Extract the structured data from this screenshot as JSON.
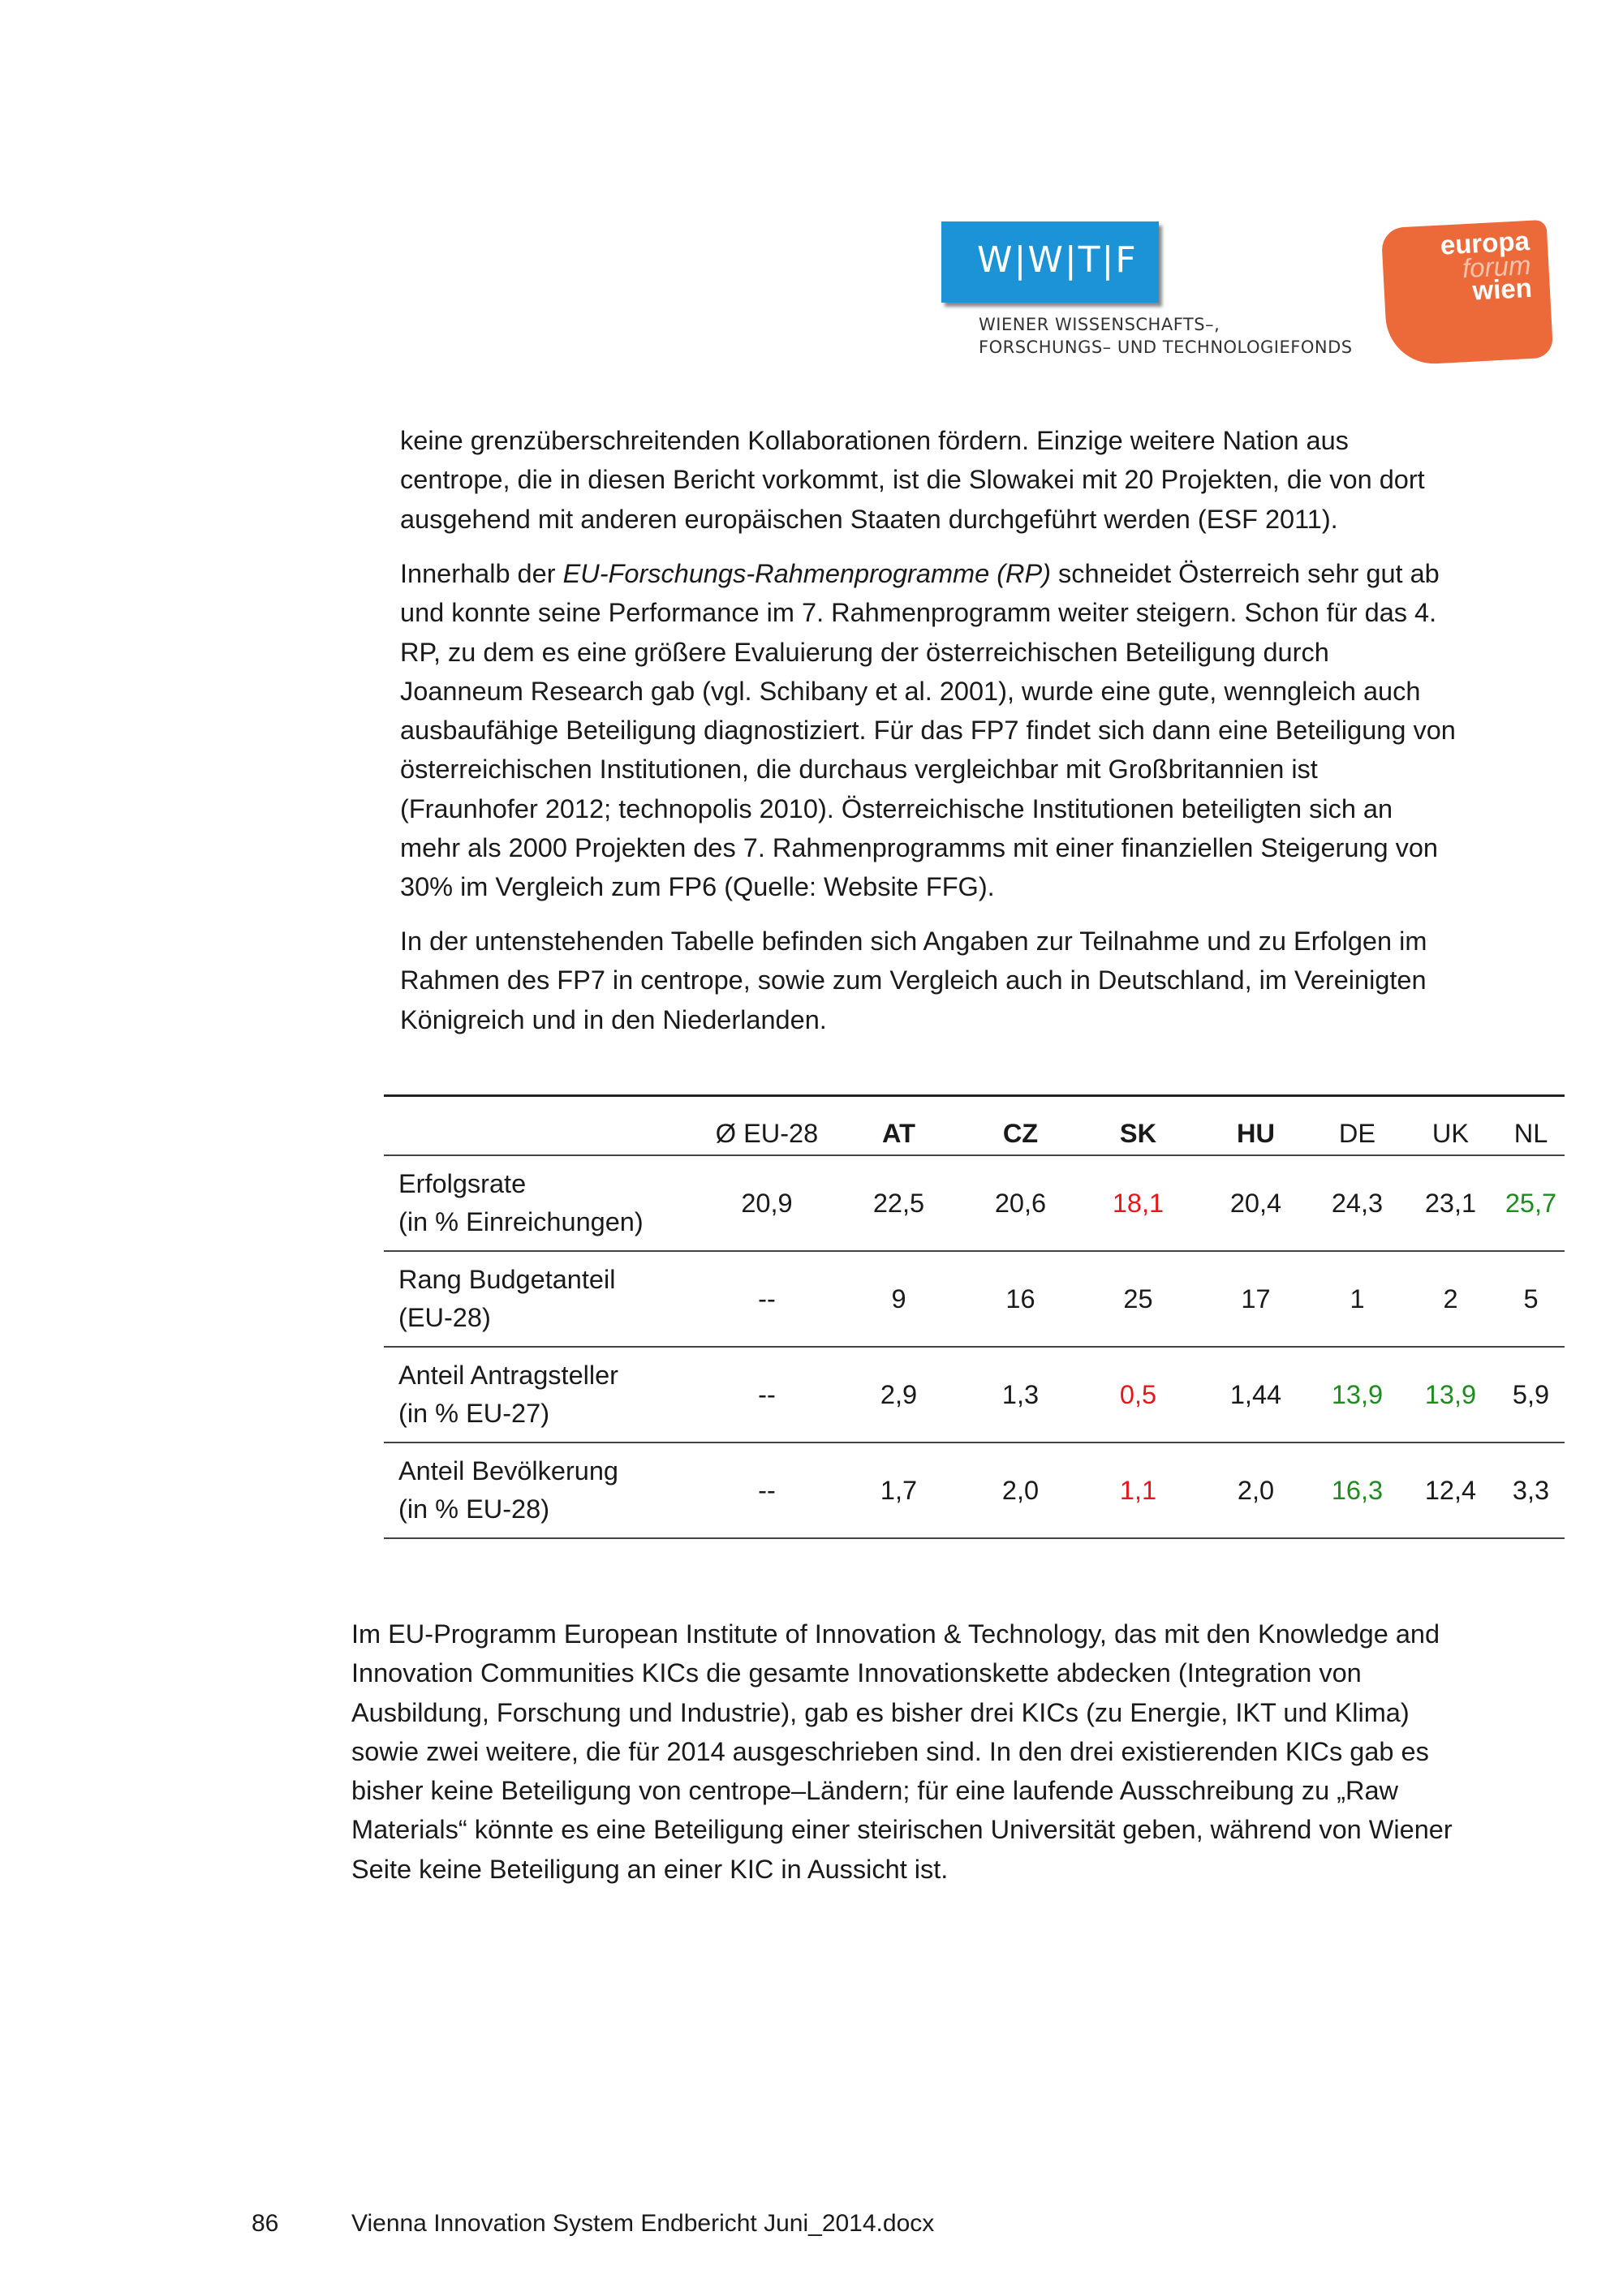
{
  "header": {
    "wwtf_logo": {
      "letters": "W|W|T|F",
      "tagline": [
        "WIENER WISSENSCHAFTS–,",
        "FORSCHUNGS– UND TECHNOLOGIEFONDS"
      ],
      "color": "#1c93d6"
    },
    "efw_logo": {
      "lines": [
        "europa",
        "forum",
        "wien"
      ],
      "color": "#ec6a3a"
    }
  },
  "paragraphs": {
    "p1": [
      "keine grenzüberschreitenden Kollaborationen fördern. Einzige weitere Nation aus",
      "centrope, die in diesen Bericht vorkommt, ist die Slowakei mit 20 Projekten, die von dort",
      "ausgehend mit anderen europäischen Staaten durchgeführt werden (ESF 2011)."
    ],
    "p2": {
      "first_pre": "Innerhalb der ",
      "first_italic": "EU-Forschungs-Rahmenprogramme (RP)",
      "first_post": " schneidet Österreich sehr gut ab",
      "lines": [
        "und konnte seine Performance im 7. Rahmenprogramm weiter steigern. Schon für das 4.",
        "RP, zu dem es eine größere Evaluierung der österreichischen Beteiligung durch",
        "Joanneum Research gab (vgl. Schibany et al. 2001), wurde eine gute, wenngleich auch",
        "ausbaufähige Beteiligung diagnostiziert. Für das FP7 findet sich dann eine Beteiligung von",
        "österreichischen Institutionen, die durchaus vergleichbar mit Großbritannien ist",
        "(Fraunhofer 2012; technopolis 2010). Österreichische Institutionen beteiligten sich an",
        "mehr als 2000 Projekten des 7. Rahmenprogramms mit einer finanziellen Steigerung von",
        "30% im Vergleich zum FP6 (Quelle: Website FFG)."
      ]
    },
    "p3": [
      "In der untenstehenden Tabelle befinden sich Angaben zur Teilnahme und zu Erfolgen im",
      "Rahmen des FP7 in centrope, sowie zum Vergleich auch in Deutschland, im Vereinigten",
      "Königreich und in den Niederlanden."
    ],
    "p4": [
      "Im EU-Programm European Institute of Innovation & Technology, das mit den Knowledge and",
      "Innovation Communities KICs die gesamte Innovationskette abdecken (Integration von",
      "Ausbildung, Forschung und Industrie), gab es bisher drei KICs (zu Energie, IKT und Klima)",
      "sowie zwei weitere, die für 2014 ausgeschrieben sind. In den drei existierenden KICs gab es",
      "bisher keine Beteiligung von centrope–Ländern; für eine laufende Ausschreibung zu „Raw",
      "Materials“ könnte es eine Beteiligung einer steirischen Universität geben, während von Wiener",
      "Seite keine Beteiligung an einer KIC in Aussicht ist."
    ]
  },
  "table": {
    "headers": [
      "",
      "Ø EU-28",
      "AT",
      "CZ",
      "SK",
      "HU",
      "DE",
      "UK",
      "NL"
    ],
    "bold_headers": [
      "AT",
      "CZ",
      "SK",
      "HU"
    ],
    "colors": {
      "red": "#e8151b",
      "green": "#1e8c1e"
    },
    "rows": [
      {
        "label": [
          "Erfolgsrate",
          "(in % Einreichungen)"
        ],
        "cells": [
          "20,9",
          "22,5",
          "20,6",
          "18,1",
          "20,4",
          "24,3",
          "23,1",
          "25,7"
        ],
        "highlight": [
          "",
          "",
          "",
          "red",
          "",
          "",
          "",
          "green"
        ]
      },
      {
        "label": [
          "Rang Budgetanteil",
          "(EU-28)"
        ],
        "cells": [
          "--",
          "9",
          "16",
          "25",
          "17",
          "1",
          "2",
          "5"
        ],
        "highlight": [
          "",
          "",
          "",
          "",
          "",
          "",
          "",
          ""
        ]
      },
      {
        "label": [
          "Anteil Antragsteller",
          "(in % EU-27)"
        ],
        "cells": [
          "--",
          "2,9",
          "1,3",
          "0,5",
          "1,44",
          "13,9",
          "13,9",
          "5,9"
        ],
        "highlight": [
          "",
          "",
          "",
          "red",
          "",
          "green",
          "green",
          ""
        ]
      },
      {
        "label": [
          "Anteil Bevölkerung",
          "(in % EU-28)"
        ],
        "cells": [
          "--",
          "1,7",
          "2,0",
          "1,1",
          "2,0",
          "16,3",
          "12,4",
          "3,3"
        ],
        "highlight": [
          "",
          "",
          "",
          "red",
          "",
          "green",
          "",
          ""
        ]
      }
    ]
  },
  "footer": {
    "page_number": "86",
    "document": "Vienna Innovation System Endbericht Juni_2014.docx"
  }
}
